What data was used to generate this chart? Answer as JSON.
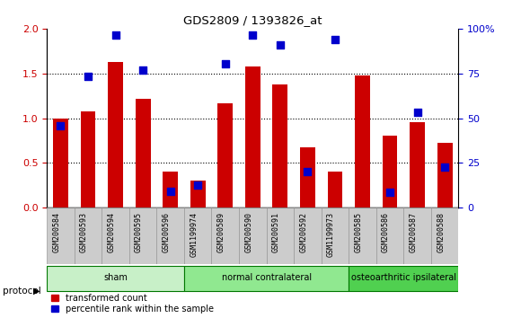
{
  "title": "GDS2809 / 1393826_at",
  "samples": [
    "GSM200584",
    "GSM200593",
    "GSM200594",
    "GSM200595",
    "GSM200596",
    "GSM1199974",
    "GSM200589",
    "GSM200590",
    "GSM200591",
    "GSM200592",
    "GSM1199973",
    "GSM200585",
    "GSM200586",
    "GSM200587",
    "GSM200588"
  ],
  "red_values": [
    1.0,
    1.08,
    1.63,
    1.22,
    0.4,
    0.3,
    1.17,
    1.58,
    1.38,
    0.67,
    0.4,
    1.48,
    0.8,
    0.96,
    0.72
  ],
  "blue_values": [
    0.92,
    1.47,
    1.93,
    1.54,
    0.18,
    0.25,
    1.61,
    1.93,
    1.82,
    0.4,
    1.88,
    null,
    0.17,
    1.07,
    0.45
  ],
  "groups": [
    {
      "label": "sham",
      "start": 0,
      "end": 5,
      "color": "#c8f0c8"
    },
    {
      "label": "normal contralateral",
      "start": 5,
      "end": 11,
      "color": "#90e890"
    },
    {
      "label": "osteoarthritic ipsilateral",
      "start": 11,
      "end": 15,
      "color": "#50d050"
    }
  ],
  "ylim_left": [
    0,
    2.0
  ],
  "ylim_right": [
    0,
    100
  ],
  "yticks_left": [
    0,
    0.5,
    1.0,
    1.5,
    2.0
  ],
  "yticks_right": [
    0,
    25,
    50,
    75,
    100
  ],
  "ytick_labels_right": [
    "0",
    "25",
    "50",
    "75",
    "100%"
  ],
  "red_color": "#cc0000",
  "blue_color": "#0000cc",
  "bar_width": 0.55,
  "bg_color": "#ffffff",
  "label_red": "transformed count",
  "label_blue": "percentile rank within the sample",
  "marker_size": 40
}
